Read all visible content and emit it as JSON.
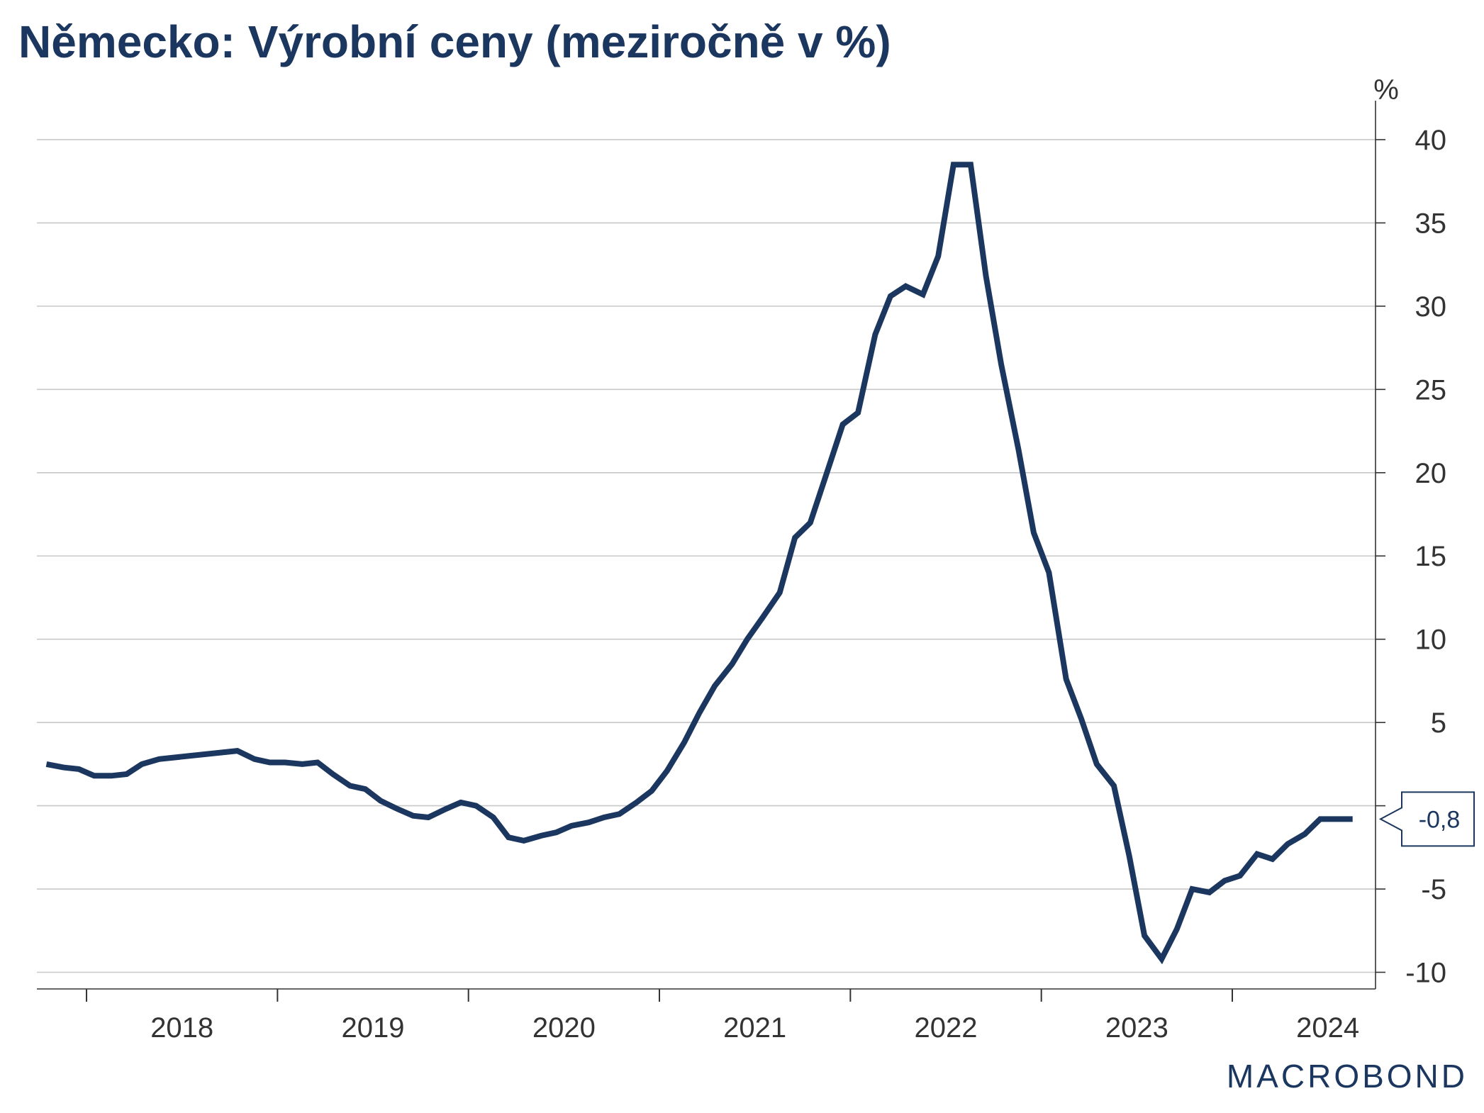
{
  "title": "Německo: Výrobní ceny (meziročně v %)",
  "brand": {
    "pre": "MACR",
    "o": "O",
    "post": "BOND"
  },
  "colors": {
    "line": "#1b3760",
    "title": "#1b3760",
    "grid": "#c8c8c8",
    "axis": "#333333",
    "text": "#333333"
  },
  "chart_data": {
    "type": "line",
    "title": "Německo: Výrobní ceny (meziročně v %)",
    "ylabel": "%",
    "ylim": [
      -11,
      42
    ],
    "yticks": [
      40,
      35,
      30,
      25,
      20,
      15,
      10,
      5,
      -5,
      -10
    ],
    "y_axis_position": "right",
    "grid": true,
    "xlim": [
      2017.74,
      2024.75
    ],
    "x_tick_marks": [
      2018,
      2019,
      2020,
      2021,
      2022,
      2023,
      2024
    ],
    "x_labels": [
      {
        "label": "2018",
        "x": 2018.5
      },
      {
        "label": "2019",
        "x": 2019.5
      },
      {
        "label": "2020",
        "x": 2020.5
      },
      {
        "label": "2021",
        "x": 2021.5
      },
      {
        "label": "2022",
        "x": 2022.5
      },
      {
        "label": "2023",
        "x": 2023.5
      },
      {
        "label": "2024",
        "x": 2024.5
      }
    ],
    "last_value_label": "-0,8",
    "last_value": -0.8,
    "series": [
      {
        "x": [
          2017.79,
          2017.88,
          2017.96,
          2018.04,
          2018.13,
          2018.21,
          2018.29,
          2018.38,
          2018.79,
          2018.88,
          2018.96,
          2019.04,
          2019.13,
          2019.21,
          2019.29,
          2019.38,
          2019.46,
          2019.54,
          2019.63,
          2019.71,
          2019.79,
          2019.88,
          2019.96,
          2020.04,
          2020.13,
          2020.21,
          2020.29,
          2020.38,
          2020.46,
          2020.54,
          2020.63,
          2020.71,
          2020.79,
          2020.88,
          2020.96,
          2021.04,
          2021.13,
          2021.21,
          2021.29,
          2021.38,
          2021.46,
          2021.54,
          2021.63,
          2021.71,
          2021.79,
          2021.88,
          2021.96,
          2022.04,
          2022.13,
          2022.21,
          2022.29,
          2022.38,
          2022.46,
          2022.54,
          2022.63,
          2022.71,
          2022.79,
          2022.88,
          2022.96,
          2023.04,
          2023.13,
          2023.21,
          2023.29,
          2023.38,
          2023.46,
          2023.54,
          2023.63,
          2023.71,
          2023.79,
          2023.88,
          2023.96,
          2024.04,
          2024.13,
          2024.21,
          2024.29,
          2024.38,
          2024.46,
          2024.54,
          2024.63
        ],
        "values": [
          2.5,
          2.3,
          2.2,
          1.8,
          1.8,
          1.9,
          2.5,
          2.8,
          3.3,
          2.8,
          2.6,
          2.6,
          2.5,
          2.6,
          1.9,
          1.2,
          1.0,
          0.3,
          -0.2,
          -0.6,
          -0.7,
          -0.2,
          0.2,
          0.0,
          -0.7,
          -1.9,
          -2.1,
          -1.8,
          -1.6,
          -1.2,
          -1.0,
          -0.7,
          -0.5,
          0.2,
          0.9,
          2.1,
          3.8,
          5.6,
          7.2,
          8.5,
          10.0,
          11.3,
          12.8,
          16.1,
          17.0,
          20.1,
          22.9,
          23.6,
          28.3,
          30.6,
          31.2,
          30.7,
          33.0,
          38.5,
          38.5,
          31.8,
          26.5,
          21.4,
          16.4,
          14.0,
          7.6,
          5.2,
          2.5,
          1.2,
          -3.0,
          -7.8,
          -9.2,
          -7.4,
          -5.0,
          -5.2,
          -4.5,
          -4.2,
          -2.9,
          -3.2,
          -2.3,
          -1.7,
          -0.8,
          -0.8,
          -0.8
        ]
      }
    ]
  }
}
